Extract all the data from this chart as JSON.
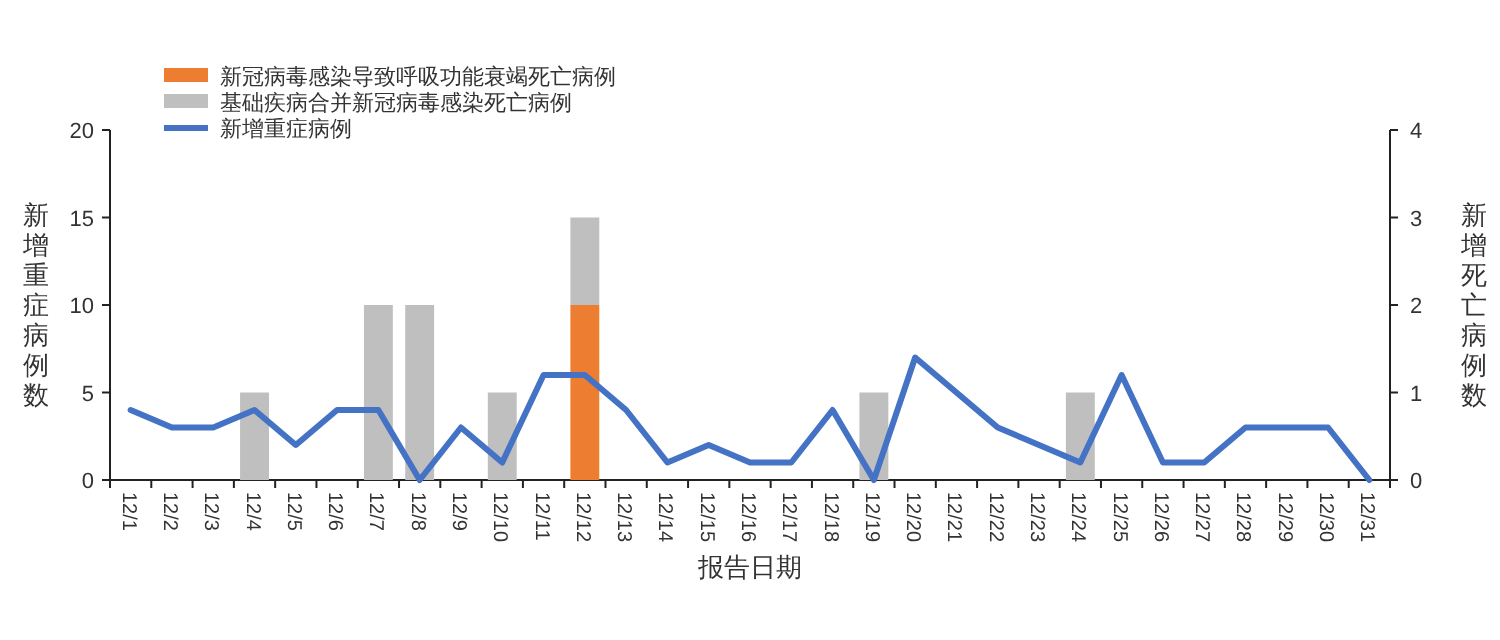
{
  "chart_data": {
    "type": "bar",
    "xlabel": "报告日期",
    "ylabel": "新增重症病例数",
    "y2label": "新增死亡病例数",
    "categories": [
      "12/1",
      "12/2",
      "12/3",
      "12/4",
      "12/5",
      "12/6",
      "12/7",
      "12/8",
      "12/9",
      "12/10",
      "12/11",
      "12/12",
      "12/13",
      "12/14",
      "12/15",
      "12/16",
      "12/17",
      "12/18",
      "12/19",
      "12/20",
      "12/21",
      "12/22",
      "12/23",
      "12/24",
      "12/25",
      "12/26",
      "12/27",
      "12/28",
      "12/29",
      "12/30",
      "12/31"
    ],
    "stacked": true,
    "series": [
      {
        "name": "新冠病毒感染导致呼吸功能衰竭死亡病例",
        "axis": "y2",
        "color": "#ed7d31",
        "values": [
          null,
          null,
          null,
          null,
          null,
          null,
          null,
          null,
          null,
          null,
          null,
          2,
          null,
          null,
          null,
          null,
          null,
          null,
          null,
          null,
          null,
          null,
          null,
          null,
          null,
          null,
          null,
          null,
          null,
          null,
          null
        ]
      },
      {
        "name": "基础疾病合并新冠病毒感染死亡病例",
        "axis": "y2",
        "color": "#bfbfbf",
        "values": [
          null,
          null,
          null,
          1,
          null,
          null,
          2,
          2,
          null,
          1,
          null,
          1,
          null,
          null,
          null,
          null,
          null,
          null,
          1,
          null,
          null,
          null,
          null,
          1,
          null,
          null,
          null,
          null,
          null,
          null,
          null
        ]
      },
      {
        "name": "新增重症病例",
        "type": "line",
        "color": "#4472c4",
        "values": [
          4,
          3,
          3,
          4,
          2,
          4,
          4,
          0,
          3,
          1,
          6,
          6,
          4,
          1,
          2,
          1,
          1,
          4,
          0,
          7,
          5,
          3,
          2,
          1,
          6,
          1,
          1,
          3,
          3,
          3,
          0
        ]
      }
    ],
    "ylim": [
      0,
      20
    ],
    "yticks": [
      0,
      5,
      10,
      15,
      20
    ],
    "y2lim": [
      0,
      4
    ],
    "y2ticks": [
      0,
      1,
      2,
      3,
      4
    ],
    "legend": "top left",
    "grid": false
  }
}
